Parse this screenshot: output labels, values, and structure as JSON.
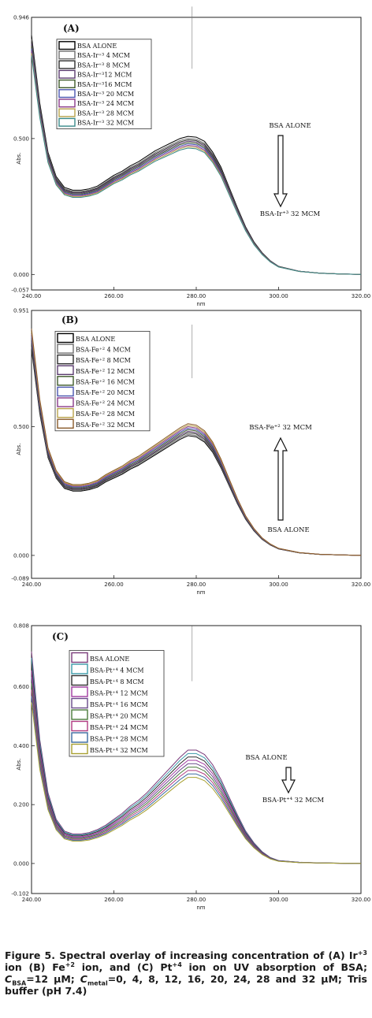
{
  "chart_data": [
    {
      "type": "line",
      "panel_label": "(A)",
      "xlabel": "nm",
      "ylabel": "Abs.",
      "xlim": [
        240,
        320
      ],
      "ylim": [
        -0.057,
        0.946
      ],
      "x_ticks": [
        "240.00",
        "260.00",
        "280.00",
        "300.00",
        "320.00"
      ],
      "y_ticks": [
        {
          "v": -0.057,
          "t": "-0.057"
        },
        {
          "v": 0,
          "t": "0.000"
        },
        {
          "v": 0.5,
          "t": "0.500"
        },
        {
          "v": 0.946,
          "t": "0.946"
        }
      ],
      "x": [
        240,
        242,
        244,
        246,
        248,
        250,
        252,
        254,
        256,
        258,
        260,
        262,
        264,
        266,
        268,
        270,
        272,
        274,
        276,
        278,
        280,
        282,
        284,
        286,
        288,
        290,
        292,
        294,
        296,
        298,
        300,
        305,
        310,
        315,
        320
      ],
      "profile": [
        0.88,
        0.63,
        0.45,
        0.36,
        0.32,
        0.31,
        0.31,
        0.315,
        0.325,
        0.345,
        0.365,
        0.38,
        0.4,
        0.415,
        0.435,
        0.455,
        0.47,
        0.485,
        0.5,
        0.508,
        0.505,
        0.49,
        0.45,
        0.395,
        0.32,
        0.245,
        0.175,
        0.12,
        0.08,
        0.05,
        0.03,
        0.012,
        0.005,
        0.002,
        0.0
      ],
      "series": [
        {
          "name": "BSA ALONE",
          "scale": 1.0,
          "color": "#000000"
        },
        {
          "name": "BSA-Ir⁺³ 4 MCM",
          "scale": 0.985,
          "color": "#6e6e6e"
        },
        {
          "name": "BSA-Ir⁺³ 8 MCM",
          "scale": 0.975,
          "color": "#2e2e2e"
        },
        {
          "name": "BSA-Ir⁺³12 MCM",
          "scale": 0.965,
          "color": "#5a3b6e"
        },
        {
          "name": "BSA-Ir⁺³16 MCM",
          "scale": 0.955,
          "color": "#3e5a2a"
        },
        {
          "name": "BSA-Ir⁺³ 20 MCM",
          "scale": 0.945,
          "color": "#4a55b0"
        },
        {
          "name": "BSA-Ir⁺³ 24 MCM",
          "scale": 0.935,
          "color": "#8a3a8a"
        },
        {
          "name": "BSA-Ir⁺³ 28 MCM",
          "scale": 0.925,
          "color": "#b8a24a"
        },
        {
          "name": "BSA-Ir⁺³ 32 MCM",
          "scale": 0.915,
          "color": "#3a8a8a"
        }
      ],
      "annotations": {
        "top": "BSA ALONE",
        "bottom": "BSA-Ir⁺³ 32 MCM",
        "arrow": "down"
      }
    },
    {
      "type": "line",
      "panel_label": "(B)",
      "xlabel": "nm",
      "ylabel": "Abs.",
      "xlim": [
        240,
        320
      ],
      "ylim": [
        -0.089,
        0.951
      ],
      "x_ticks": [
        "240.00",
        "260.00",
        "280.00",
        "300.00",
        "320.00"
      ],
      "y_ticks": [
        {
          "v": -0.089,
          "t": "-0.089"
        },
        {
          "v": 0,
          "t": "0.000"
        },
        {
          "v": 0.5,
          "t": "0.500"
        },
        {
          "v": 0.951,
          "t": "0.951"
        }
      ],
      "x": [
        240,
        242,
        244,
        246,
        248,
        250,
        252,
        254,
        256,
        258,
        260,
        262,
        264,
        266,
        268,
        270,
        272,
        274,
        276,
        278,
        280,
        282,
        284,
        286,
        288,
        290,
        292,
        294,
        296,
        298,
        300,
        305,
        310,
        315,
        320
      ],
      "profile": [
        0.8,
        0.55,
        0.38,
        0.3,
        0.26,
        0.25,
        0.25,
        0.255,
        0.265,
        0.285,
        0.3,
        0.315,
        0.335,
        0.35,
        0.37,
        0.39,
        0.41,
        0.43,
        0.45,
        0.465,
        0.46,
        0.44,
        0.4,
        0.34,
        0.27,
        0.2,
        0.14,
        0.095,
        0.062,
        0.04,
        0.025,
        0.01,
        0.004,
        0.002,
        0.0
      ],
      "series": [
        {
          "name": "BSA ALONE",
          "scale": 1.0,
          "color": "#000000"
        },
        {
          "name": "BSA-Fe⁺² 4 MCM",
          "scale": 1.012,
          "color": "#6e6e6e"
        },
        {
          "name": "BSA-Fe⁺² 8 MCM",
          "scale": 1.025,
          "color": "#2e2e2e"
        },
        {
          "name": "BSA-Fe⁺² 12 MCM",
          "scale": 1.037,
          "color": "#5a3b6e"
        },
        {
          "name": "BSA-Fe⁺² 16  MCM",
          "scale": 1.05,
          "color": "#3e5a2a"
        },
        {
          "name": "BSA-Fe⁺² 20 MCM",
          "scale": 1.062,
          "color": "#4a55b0"
        },
        {
          "name": "BSA-Fe⁺² 24 MCM",
          "scale": 1.075,
          "color": "#8a3a8a"
        },
        {
          "name": "BSA-Fe⁺² 28 MCM",
          "scale": 1.087,
          "color": "#b8a24a"
        },
        {
          "name": "BSA-Fe⁺² 32 MCM",
          "scale": 1.1,
          "color": "#8a5a2a"
        }
      ],
      "annotations": {
        "top": "BSA-Fe⁺² 32 MCM",
        "bottom": "BSA ALONE",
        "arrow": "up"
      }
    },
    {
      "type": "line",
      "panel_label": "(C)",
      "xlabel": "nm",
      "ylabel": "Abs.",
      "xlim": [
        240,
        320
      ],
      "ylim": [
        -0.102,
        0.808
      ],
      "x_ticks": [
        "240.00",
        "260.00",
        "280.00",
        "300.00",
        "320.00"
      ],
      "y_ticks": [
        {
          "v": -0.102,
          "t": "-0.102"
        },
        {
          "v": 0,
          "t": "0.000"
        },
        {
          "v": 0.2,
          "t": "0.200"
        },
        {
          "v": 0.4,
          "t": "0.400"
        },
        {
          "v": 0.6,
          "t": "0.600"
        },
        {
          "v": 0.808,
          "t": "0.808"
        }
      ],
      "x": [
        240,
        242,
        244,
        246,
        248,
        250,
        252,
        254,
        256,
        258,
        260,
        262,
        264,
        266,
        268,
        270,
        272,
        274,
        276,
        278,
        280,
        282,
        284,
        286,
        288,
        290,
        292,
        294,
        296,
        298,
        300,
        305,
        310,
        315,
        320
      ],
      "profile": [
        0.72,
        0.42,
        0.24,
        0.15,
        0.11,
        0.1,
        0.1,
        0.105,
        0.115,
        0.13,
        0.15,
        0.17,
        0.195,
        0.215,
        0.24,
        0.27,
        0.3,
        0.33,
        0.36,
        0.385,
        0.385,
        0.37,
        0.335,
        0.285,
        0.225,
        0.165,
        0.11,
        0.07,
        0.04,
        0.02,
        0.01,
        0.004,
        0.002,
        0.001,
        0.0
      ],
      "series": [
        {
          "name": "BSA ALONE",
          "scale": 1.0,
          "color": "#7a3a7a"
        },
        {
          "name": "BSA-Pt⁺⁴ 4 MCM",
          "scale": 0.97,
          "color": "#3a9aa8"
        },
        {
          "name": "BSA-Pt⁺⁴ 8 MCM",
          "scale": 0.94,
          "color": "#2e2e2e"
        },
        {
          "name": "BSA-Pt⁺⁴ 12 MCM",
          "scale": 0.91,
          "color": "#a03aa0"
        },
        {
          "name": "BSA-Pt⁺⁴ 16 MCM",
          "scale": 0.88,
          "color": "#6a4a8a"
        },
        {
          "name": "BSA-Pt⁺⁴ 20 MCM",
          "scale": 0.85,
          "color": "#4a7a3a"
        },
        {
          "name": "BSA-Pt⁺⁴ 24 MCM",
          "scale": 0.82,
          "color": "#b03a80"
        },
        {
          "name": "BSA-Pt⁺⁴ 28 MCM",
          "scale": 0.79,
          "color": "#3a6aa0"
        },
        {
          "name": "BSA-Pt⁺⁴ 32 MCM",
          "scale": 0.76,
          "color": "#a8a030"
        }
      ],
      "annotations": {
        "top": "BSA ALONE",
        "bottom": "BSA-Pt⁺⁴ 32 MCM",
        "arrow": "down"
      }
    }
  ],
  "caption": {
    "p1": "Figure 5. Spectral overlay of increasing concentration of (A) Ir",
    "s1": "+3",
    "p2": " ion (B) Fe",
    "s2": "+2",
    "p3": " ion, and (C) Pt",
    "s3": "+4",
    "p4": " ion on UV absorption of BSA; ",
    "c1": "C",
    "c1sub": "BSA",
    "p5": "=12 µM; ",
    "c2": "C",
    "c2sub": "metal",
    "p6": "=0, 4, 8, 12, 16, 20, 24, 28 and 32 µM; Tris buffer (pH 7.4)"
  }
}
